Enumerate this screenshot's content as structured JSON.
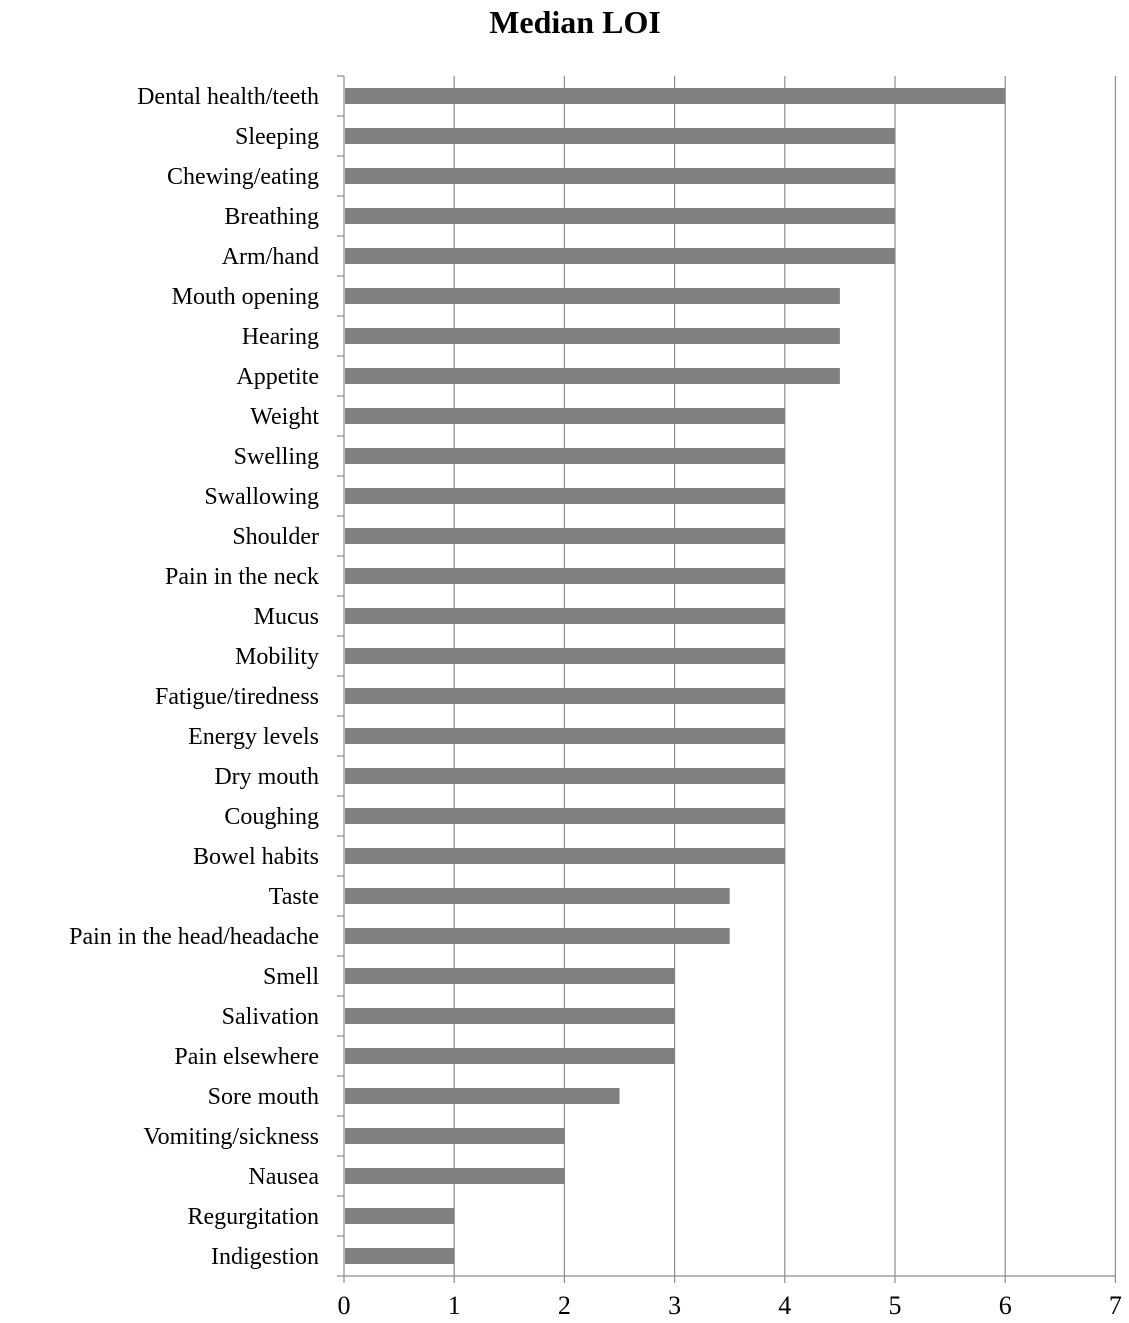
{
  "chart_data": {
    "type": "bar",
    "orientation": "horizontal",
    "title": "Median LOI",
    "xlabel": "",
    "ylabel": "",
    "xlim": [
      0,
      7
    ],
    "x_ticks": [
      0,
      1,
      2,
      3,
      4,
      5,
      6,
      7
    ],
    "grid": "vertical",
    "legend": "none",
    "bar_color": "#808080",
    "categories": [
      "Dental health/teeth",
      "Sleeping",
      "Chewing/eating ",
      "Breathing",
      "Arm/hand",
      "Mouth opening",
      "Hearing",
      "Appetite ",
      "Weight",
      "Swelling",
      "Swallowing",
      "Shoulder",
      "Pain in the neck",
      "Mucus",
      "Mobility",
      "Fatigue/tiredness",
      "Energy levels",
      "Dry mouth",
      "Coughing",
      "Bowel habits",
      "Taste",
      "Pain in the head/headache",
      "Smell",
      "Salivation",
      "Pain elsewhere",
      "Sore mouth",
      "Vomiting/sickness",
      "Nausea",
      "Regurgitation",
      "Indigestion"
    ],
    "values": [
      6,
      5,
      5,
      5,
      5,
      4.5,
      4.5,
      4.5,
      4,
      4,
      4,
      4,
      4,
      4,
      4,
      4,
      4,
      4,
      4,
      4,
      3.5,
      3.5,
      3,
      3,
      3,
      2.5,
      2,
      2,
      1,
      1
    ]
  }
}
